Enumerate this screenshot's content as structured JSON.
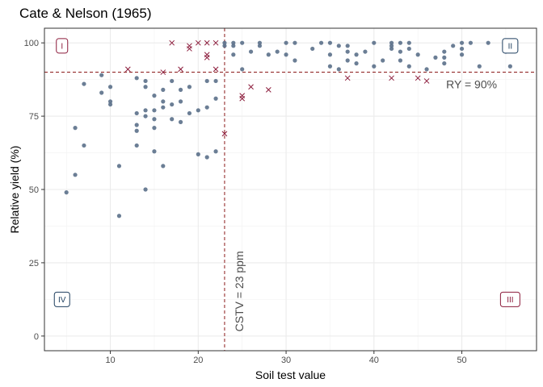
{
  "chart_data": {
    "type": "scatter",
    "title": "Cate & Nelson (1965)",
    "xlabel": "Soil test value",
    "ylabel": "Relative yield (%)",
    "xlim": [
      2.5,
      58.5
    ],
    "ylim": [
      -5,
      105
    ],
    "x_ticks": [
      10,
      20,
      30,
      40,
      50
    ],
    "y_ticks": [
      0,
      25,
      50,
      75,
      100
    ],
    "grid": true,
    "colors": {
      "point": "#5b7089",
      "cross": "#8b1a3a",
      "threshold": "#8b1a1a",
      "panel_border": "#333333",
      "grid_major": "#ebebeb",
      "quad_blue": "#1f3f5f",
      "quad_red": "#8b1a3a"
    },
    "thresholds": {
      "x": 23,
      "y": 90
    },
    "annotations": {
      "cstv": "CSTV = 23 ppm",
      "ry": "RY = 90%"
    },
    "quadrants": [
      {
        "label": "I",
        "x": 4.5,
        "y": 99,
        "color": "#8b1a3a"
      },
      {
        "label": "II",
        "x": 55.5,
        "y": 99,
        "color": "#1f3f5f"
      },
      {
        "label": "III",
        "x": 55.5,
        "y": 12.5,
        "color": "#8b1a3a"
      },
      {
        "label": "IV",
        "x": 4.5,
        "y": 12.5,
        "color": "#1f3f5f"
      }
    ],
    "points": [
      {
        "x": 5,
        "y": 49
      },
      {
        "x": 6,
        "y": 71
      },
      {
        "x": 6,
        "y": 55
      },
      {
        "x": 7,
        "y": 86
      },
      {
        "x": 7,
        "y": 65
      },
      {
        "x": 9,
        "y": 89
      },
      {
        "x": 9,
        "y": 83
      },
      {
        "x": 10,
        "y": 85
      },
      {
        "x": 10,
        "y": 80
      },
      {
        "x": 10,
        "y": 79
      },
      {
        "x": 11,
        "y": 58
      },
      {
        "x": 11,
        "y": 41
      },
      {
        "x": 13,
        "y": 88
      },
      {
        "x": 13,
        "y": 76
      },
      {
        "x": 13,
        "y": 72
      },
      {
        "x": 13,
        "y": 70
      },
      {
        "x": 13,
        "y": 65
      },
      {
        "x": 14,
        "y": 87
      },
      {
        "x": 14,
        "y": 85
      },
      {
        "x": 14,
        "y": 77
      },
      {
        "x": 14,
        "y": 75
      },
      {
        "x": 14,
        "y": 50
      },
      {
        "x": 15,
        "y": 82
      },
      {
        "x": 15,
        "y": 77
      },
      {
        "x": 15,
        "y": 74
      },
      {
        "x": 15,
        "y": 71
      },
      {
        "x": 15,
        "y": 63
      },
      {
        "x": 16,
        "y": 84
      },
      {
        "x": 16,
        "y": 80
      },
      {
        "x": 16,
        "y": 78
      },
      {
        "x": 16,
        "y": 58
      },
      {
        "x": 17,
        "y": 87
      },
      {
        "x": 17,
        "y": 79
      },
      {
        "x": 17,
        "y": 74
      },
      {
        "x": 18,
        "y": 84
      },
      {
        "x": 18,
        "y": 80
      },
      {
        "x": 18,
        "y": 73
      },
      {
        "x": 19,
        "y": 85
      },
      {
        "x": 19,
        "y": 76
      },
      {
        "x": 20,
        "y": 77
      },
      {
        "x": 20,
        "y": 62
      },
      {
        "x": 21,
        "y": 87
      },
      {
        "x": 21,
        "y": 78
      },
      {
        "x": 21,
        "y": 61
      },
      {
        "x": 22,
        "y": 87
      },
      {
        "x": 22,
        "y": 81
      },
      {
        "x": 22,
        "y": 63
      },
      {
        "x": 23,
        "y": 100
      },
      {
        "x": 23,
        "y": 99
      },
      {
        "x": 24,
        "y": 100
      },
      {
        "x": 24,
        "y": 99
      },
      {
        "x": 24,
        "y": 96
      },
      {
        "x": 25,
        "y": 100
      },
      {
        "x": 25,
        "y": 91
      },
      {
        "x": 26,
        "y": 97
      },
      {
        "x": 27,
        "y": 100
      },
      {
        "x": 27,
        "y": 99
      },
      {
        "x": 28,
        "y": 96
      },
      {
        "x": 29,
        "y": 97
      },
      {
        "x": 30,
        "y": 100
      },
      {
        "x": 30,
        "y": 96
      },
      {
        "x": 31,
        "y": 94
      },
      {
        "x": 31,
        "y": 100
      },
      {
        "x": 33,
        "y": 98
      },
      {
        "x": 34,
        "y": 100
      },
      {
        "x": 35,
        "y": 100
      },
      {
        "x": 35,
        "y": 96
      },
      {
        "x": 35,
        "y": 92
      },
      {
        "x": 36,
        "y": 99
      },
      {
        "x": 36,
        "y": 91
      },
      {
        "x": 37,
        "y": 99
      },
      {
        "x": 37,
        "y": 97
      },
      {
        "x": 37,
        "y": 94
      },
      {
        "x": 38,
        "y": 96
      },
      {
        "x": 38,
        "y": 93
      },
      {
        "x": 39,
        "y": 97
      },
      {
        "x": 40,
        "y": 100
      },
      {
        "x": 40,
        "y": 92
      },
      {
        "x": 41,
        "y": 94
      },
      {
        "x": 42,
        "y": 100
      },
      {
        "x": 42,
        "y": 99
      },
      {
        "x": 42,
        "y": 98
      },
      {
        "x": 43,
        "y": 100
      },
      {
        "x": 43,
        "y": 97
      },
      {
        "x": 43,
        "y": 94
      },
      {
        "x": 44,
        "y": 100
      },
      {
        "x": 44,
        "y": 98
      },
      {
        "x": 44,
        "y": 92
      },
      {
        "x": 45,
        "y": 96
      },
      {
        "x": 46,
        "y": 91
      },
      {
        "x": 47,
        "y": 95
      },
      {
        "x": 48,
        "y": 97
      },
      {
        "x": 48,
        "y": 95
      },
      {
        "x": 48,
        "y": 93
      },
      {
        "x": 49,
        "y": 99
      },
      {
        "x": 50,
        "y": 100
      },
      {
        "x": 50,
        "y": 98
      },
      {
        "x": 50,
        "y": 96
      },
      {
        "x": 51,
        "y": 100
      },
      {
        "x": 52,
        "y": 92
      },
      {
        "x": 53,
        "y": 100
      },
      {
        "x": 55,
        "y": 100
      },
      {
        "x": 55,
        "y": 98
      },
      {
        "x": 55,
        "y": 97
      },
      {
        "x": 55.5,
        "y": 92
      }
    ],
    "crosses": [
      {
        "x": 12,
        "y": 91
      },
      {
        "x": 16,
        "y": 90
      },
      {
        "x": 17,
        "y": 100
      },
      {
        "x": 18,
        "y": 91
      },
      {
        "x": 19,
        "y": 99
      },
      {
        "x": 19,
        "y": 98
      },
      {
        "x": 20,
        "y": 100
      },
      {
        "x": 21,
        "y": 96
      },
      {
        "x": 21,
        "y": 95
      },
      {
        "x": 21,
        "y": 100
      },
      {
        "x": 22,
        "y": 100
      },
      {
        "x": 22,
        "y": 91
      },
      {
        "x": 23,
        "y": 69
      },
      {
        "x": 25,
        "y": 82
      },
      {
        "x": 25,
        "y": 81
      },
      {
        "x": 26,
        "y": 85
      },
      {
        "x": 28,
        "y": 84
      },
      {
        "x": 37,
        "y": 88
      },
      {
        "x": 42,
        "y": 88
      },
      {
        "x": 45,
        "y": 88
      },
      {
        "x": 46,
        "y": 87
      }
    ]
  }
}
